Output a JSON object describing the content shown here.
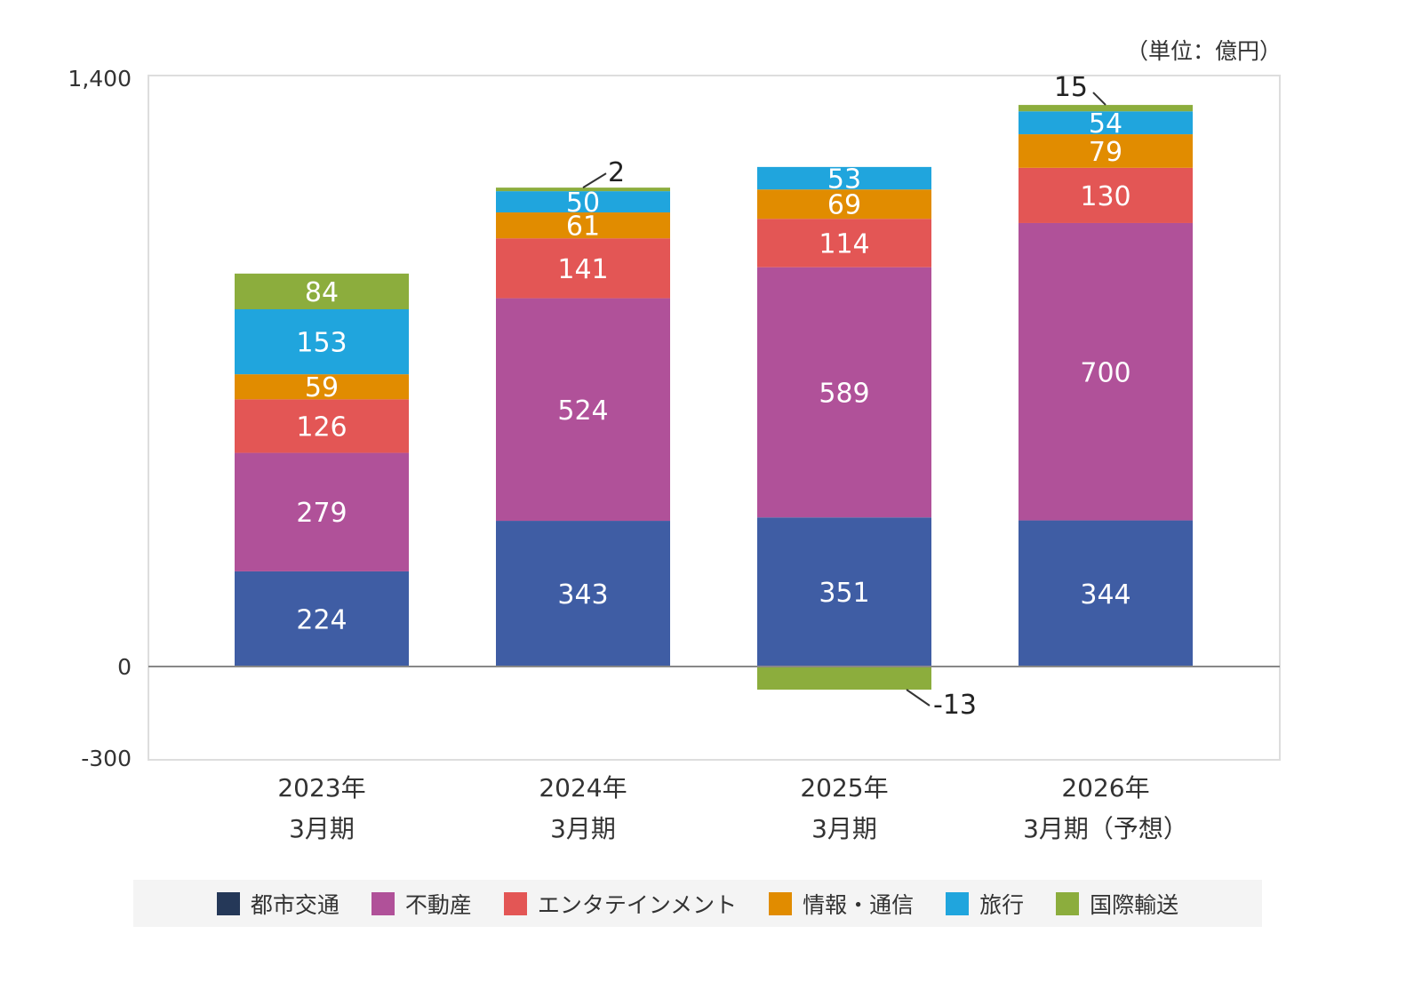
{
  "chart_data": {
    "type": "bar",
    "stacked": true,
    "unit_label": "（単位：億円）",
    "categories": [
      [
        "2023年",
        "3月期"
      ],
      [
        "2024年",
        "3月期"
      ],
      [
        "2025年",
        "3月期"
      ],
      [
        "2026年",
        "3月期（予想）"
      ]
    ],
    "ylim": [
      -300,
      1400
    ],
    "yticks": [
      {
        "value": 1400,
        "label": "1,400"
      },
      {
        "value": 0,
        "label": "0"
      },
      {
        "value": -300,
        "label": "-300"
      }
    ],
    "grid": false,
    "legend_position": "bottom",
    "series": [
      {
        "name": "都市交通",
        "color": "#3F5DA4",
        "legend_color": "#253858",
        "values": [
          224,
          343,
          351,
          344
        ]
      },
      {
        "name": "不動産",
        "color": "#B05199",
        "values": [
          279,
          524,
          589,
          700
        ]
      },
      {
        "name": "エンタテインメント",
        "color": "#E35655",
        "values": [
          126,
          141,
          114,
          130
        ]
      },
      {
        "name": "情報・通信",
        "color": "#E18C00",
        "values": [
          59,
          61,
          69,
          79
        ]
      },
      {
        "name": "旅行",
        "color": "#20A5DD",
        "values": [
          153,
          50,
          53,
          54
        ]
      },
      {
        "name": "国際輸送",
        "color": "#8CAD3D",
        "values": [
          84,
          2,
          -13,
          15
        ]
      }
    ]
  }
}
